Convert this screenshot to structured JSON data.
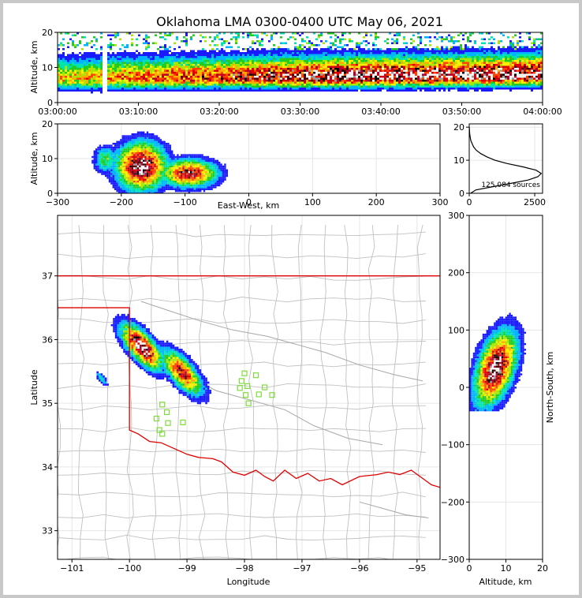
{
  "chart_data": [
    {
      "type": "heatmap",
      "panel": "time-altitude",
      "title": "Oklahoma LMA 0300-0400 UTC May 06, 2021",
      "xlabel": "",
      "ylabel": "Altitude, km",
      "x_tick_labels": [
        "03:00:00",
        "03:10:00",
        "03:20:00",
        "03:30:00",
        "03:40:00",
        "03:50:00",
        "04:00:00"
      ],
      "x_range_minutes": [
        0,
        60
      ],
      "ylim": [
        0,
        20
      ],
      "y_ticks": [
        0,
        10,
        20
      ],
      "source_band_km": [
        2,
        15
      ],
      "peak_density_altitude_km": 7,
      "gap_minutes": [
        5.3,
        5.9
      ]
    },
    {
      "type": "heatmap",
      "panel": "east-west-altitude",
      "xlabel": "East-West, km",
      "ylabel": "Altitude, km",
      "xlim": [
        -300,
        300
      ],
      "x_ticks": [
        -300,
        -200,
        -100,
        0,
        100,
        200,
        300
      ],
      "ylim": [
        0,
        20
      ],
      "y_ticks": [
        0,
        10,
        20
      ],
      "cells": [
        {
          "x_km": -170,
          "alt_km": 8,
          "width_km": 80,
          "height_km": 14,
          "peak": 1.0
        },
        {
          "x_km": -95,
          "alt_km": 6,
          "width_km": 90,
          "height_km": 8,
          "peak": 0.85
        },
        {
          "x_km": -225,
          "alt_km": 10,
          "width_km": 40,
          "height_km": 8,
          "peak": 0.35
        }
      ]
    },
    {
      "type": "line",
      "panel": "altitude-histogram",
      "xlim": [
        0,
        2800
      ],
      "x_ticks": [
        0,
        2500
      ],
      "ylim": [
        0,
        21
      ],
      "y_ticks": [
        0,
        10,
        20
      ],
      "annotation": "125,084 sources",
      "altitude_km": [
        0,
        1,
        2,
        3,
        4,
        5,
        6,
        7,
        8,
        9,
        10,
        11,
        12,
        13,
        14,
        15,
        16,
        17,
        18,
        19,
        20
      ],
      "source_count": [
        50,
        250,
        900,
        1600,
        2250,
        2620,
        2750,
        2550,
        2050,
        1450,
        980,
        680,
        440,
        270,
        170,
        110,
        60,
        35,
        18,
        8,
        3
      ]
    },
    {
      "type": "heatmap",
      "panel": "plan-view",
      "xlabel": "Longitude",
      "ylabel": "Latitude",
      "xlim": [
        -101.25,
        -94.6
      ],
      "x_ticks": [
        -101,
        -100,
        -99,
        -98,
        -97,
        -96,
        -95
      ],
      "ylim": [
        32.55,
        37.95
      ],
      "y_ticks": [
        33,
        34,
        35,
        36,
        37
      ],
      "cells": [
        {
          "lon": -99.8,
          "lat": 35.9,
          "r_deg": 0.35,
          "peak": 1.0
        },
        {
          "lon": -99.1,
          "lat": 35.5,
          "r_deg": 0.35,
          "peak": 0.8
        },
        {
          "lon": -100.5,
          "lat": 35.4,
          "r_deg": 0.1,
          "peak": 0.3
        }
      ],
      "stations": [
        {
          "lon": -98.0,
          "lat": 35.47
        },
        {
          "lon": -97.8,
          "lat": 35.44
        },
        {
          "lon": -98.05,
          "lat": 35.35
        },
        {
          "lon": -97.95,
          "lat": 35.27
        },
        {
          "lon": -97.65,
          "lat": 35.25
        },
        {
          "lon": -98.08,
          "lat": 35.24
        },
        {
          "lon": -97.98,
          "lat": 35.13
        },
        {
          "lon": -97.75,
          "lat": 35.14
        },
        {
          "lon": -97.52,
          "lat": 35.13
        },
        {
          "lon": -97.93,
          "lat": 35.0
        },
        {
          "lon": -99.43,
          "lat": 34.98
        },
        {
          "lon": -99.35,
          "lat": 34.86
        },
        {
          "lon": -99.53,
          "lat": 34.76
        },
        {
          "lon": -99.33,
          "lat": 34.69
        },
        {
          "lon": -99.07,
          "lat": 34.7
        },
        {
          "lon": -99.48,
          "lat": 34.58
        },
        {
          "lon": -99.43,
          "lat": 34.52
        }
      ]
    },
    {
      "type": "heatmap",
      "panel": "north-south-altitude",
      "xlabel": "Altitude, km",
      "ylabel": "North-South, km",
      "xlim": [
        0,
        20
      ],
      "x_ticks": [
        0,
        10,
        20
      ],
      "ylim": [
        -300,
        300
      ],
      "y_ticks": [
        -300,
        -200,
        -100,
        0,
        100,
        200,
        300
      ],
      "core_alt_km": 7,
      "core_ns_km": 35,
      "extent_ns_km": [
        -30,
        120
      ]
    }
  ],
  "colors": {
    "state_border": "#e00000",
    "county_lines": "#c0c0c0",
    "stations": "#7fdc3c",
    "grid": "#e6e6e6"
  }
}
